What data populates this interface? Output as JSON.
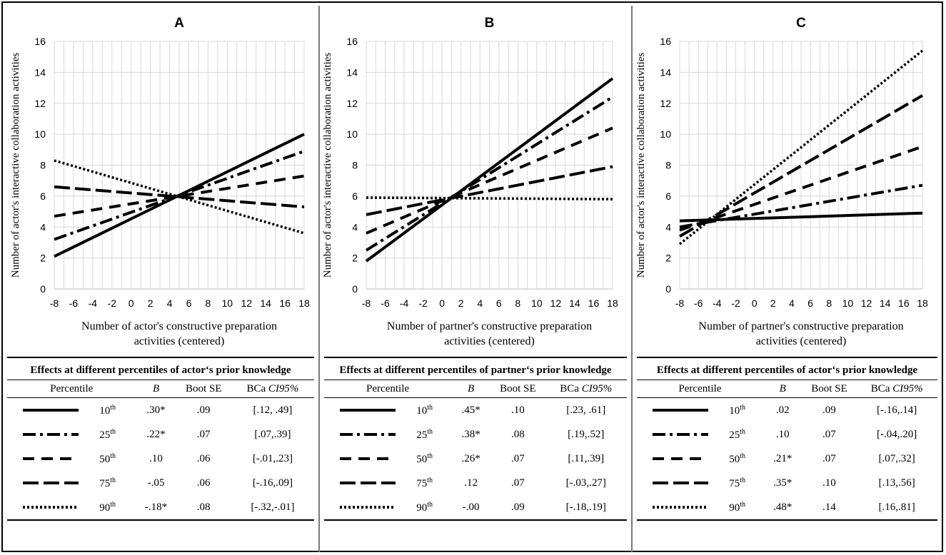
{
  "panels": [
    {
      "id": "A",
      "title": "A",
      "effects_title": "Effects at different percentiles of actor‘s prior knowledge",
      "rows": [
        {
          "pct": "10",
          "sup": "th",
          "b": ".30*",
          "se": ".09",
          "ci": "[.12, .49]"
        },
        {
          "pct": "25",
          "sup": "th",
          "b": ".22*",
          "se": ".07",
          "ci": "[.07,.39]"
        },
        {
          "pct": "50",
          "sup": "th",
          "b": ".10",
          "se": ".06",
          "ci": "[-.01,.23]"
        },
        {
          "pct": "75",
          "sup": "th",
          "b": "-.05",
          "se": ".06",
          "ci": "[-.16,.09]"
        },
        {
          "pct": "90",
          "sup": "th",
          "b": "-.18*",
          "se": ".08",
          "ci": "[-.32,-.01]"
        }
      ]
    },
    {
      "id": "B",
      "title": "B",
      "effects_title": "Effects at different percentiles of partner‘s prior knowledge",
      "rows": [
        {
          "pct": "10",
          "sup": "th",
          "b": ".45*",
          "se": ".10",
          "ci": "[.23, .61]"
        },
        {
          "pct": "25",
          "sup": "th",
          "b": ".38*",
          "se": ".08",
          "ci": "[.19,.52]"
        },
        {
          "pct": "50",
          "sup": "th",
          "b": ".26*",
          "se": ".07",
          "ci": "[.11,.39]"
        },
        {
          "pct": "75",
          "sup": "th",
          "b": ".12",
          "se": ".07",
          "ci": "[-.03,.27]"
        },
        {
          "pct": "90",
          "sup": "th",
          "b": "-.00",
          "se": ".09",
          "ci": "[-.18,.19]"
        }
      ]
    },
    {
      "id": "C",
      "title": "C",
      "effects_title": "Effects at different percentiles of actor‘s prior knowledge",
      "rows": [
        {
          "pct": "10",
          "sup": "th",
          "b": ".02",
          "se": ".09",
          "ci": "[-.16,.14]"
        },
        {
          "pct": "25",
          "sup": "th",
          "b": ".10",
          "se": ".07",
          "ci": "[-.04,.20]"
        },
        {
          "pct": "50",
          "sup": "th",
          "b": ".21*",
          "se": ".07",
          "ci": "[.07,.32]"
        },
        {
          "pct": "75",
          "sup": "th",
          "b": ".35*",
          "se": ".10",
          "ci": "[.13,.56]"
        },
        {
          "pct": "90",
          "sup": "th",
          "b": ".48*",
          "se": ".14",
          "ci": "[.16,.81]"
        }
      ]
    }
  ],
  "table_headers": {
    "percentile": "Percentile",
    "b": "B",
    "se": "Boot SE",
    "ci_prefix": "BCa",
    "ci_italic": "CI95%"
  },
  "chart_data": [
    {
      "type": "line",
      "title": "A",
      "xlabel": "Number of actor's constructive preparation activities (centered)",
      "ylabel": "Number of actor's interactive collaboration activities",
      "xlim": [
        -8,
        18
      ],
      "ylim": [
        0,
        16
      ],
      "xticks": [
        -8,
        -6,
        -4,
        -2,
        0,
        2,
        4,
        6,
        8,
        10,
        12,
        14,
        16,
        18
      ],
      "yticks": [
        0,
        2,
        4,
        6,
        8,
        10,
        12,
        14,
        16
      ],
      "grid": true,
      "series": [
        {
          "name": "10th",
          "style": "solid",
          "x": [
            -8,
            18
          ],
          "y": [
            2.1,
            10.0
          ]
        },
        {
          "name": "25th",
          "style": "dashdot",
          "x": [
            -8,
            18
          ],
          "y": [
            3.2,
            8.9
          ]
        },
        {
          "name": "50th",
          "style": "dashed",
          "x": [
            -8,
            18
          ],
          "y": [
            4.7,
            7.3
          ]
        },
        {
          "name": "75th",
          "style": "longdash",
          "x": [
            -8,
            18
          ],
          "y": [
            6.6,
            5.3
          ]
        },
        {
          "name": "90th",
          "style": "dotted",
          "x": [
            -8,
            18
          ],
          "y": [
            8.3,
            3.6
          ]
        }
      ]
    },
    {
      "type": "line",
      "title": "B",
      "xlabel": "Number of partner's constructive preparation activities (centered)",
      "ylabel": "Number of actor's interactive collaboration activities",
      "xlim": [
        -8,
        18
      ],
      "ylim": [
        0,
        16
      ],
      "xticks": [
        -8,
        -6,
        -4,
        -2,
        0,
        2,
        4,
        6,
        8,
        10,
        12,
        14,
        16,
        18
      ],
      "yticks": [
        0,
        2,
        4,
        6,
        8,
        10,
        12,
        14,
        16
      ],
      "grid": true,
      "series": [
        {
          "name": "10th",
          "style": "solid",
          "x": [
            -8,
            18
          ],
          "y": [
            1.8,
            13.6
          ]
        },
        {
          "name": "25th",
          "style": "dashdot",
          "x": [
            -8,
            18
          ],
          "y": [
            2.5,
            12.4
          ]
        },
        {
          "name": "50th",
          "style": "dashed",
          "x": [
            -8,
            18
          ],
          "y": [
            3.6,
            10.4
          ]
        },
        {
          "name": "75th",
          "style": "longdash",
          "x": [
            -8,
            18
          ],
          "y": [
            4.8,
            7.9
          ]
        },
        {
          "name": "90th",
          "style": "dotted",
          "x": [
            -8,
            18
          ],
          "y": [
            5.9,
            5.8
          ]
        }
      ]
    },
    {
      "type": "line",
      "title": "C",
      "xlabel": "Number of partner's constructive preparation activities (centered)",
      "ylabel": "Number of actor's interactive collaboration activities",
      "xlim": [
        -8,
        18
      ],
      "ylim": [
        0,
        16
      ],
      "xticks": [
        -8,
        -6,
        -4,
        -2,
        0,
        2,
        4,
        6,
        8,
        10,
        12,
        14,
        16,
        18
      ],
      "yticks": [
        0,
        2,
        4,
        6,
        8,
        10,
        12,
        14,
        16
      ],
      "grid": true,
      "series": [
        {
          "name": "10th",
          "style": "solid",
          "x": [
            -8,
            18
          ],
          "y": [
            4.4,
            4.9
          ]
        },
        {
          "name": "25th",
          "style": "dashdot",
          "x": [
            -8,
            18
          ],
          "y": [
            4.0,
            6.7
          ]
        },
        {
          "name": "50th",
          "style": "dashed",
          "x": [
            -8,
            18
          ],
          "y": [
            3.8,
            9.2
          ]
        },
        {
          "name": "75th",
          "style": "longdash",
          "x": [
            -8,
            18
          ],
          "y": [
            3.4,
            12.5
          ]
        },
        {
          "name": "90th",
          "style": "dotted",
          "x": [
            -8,
            18
          ],
          "y": [
            2.9,
            15.4
          ]
        }
      ]
    }
  ]
}
